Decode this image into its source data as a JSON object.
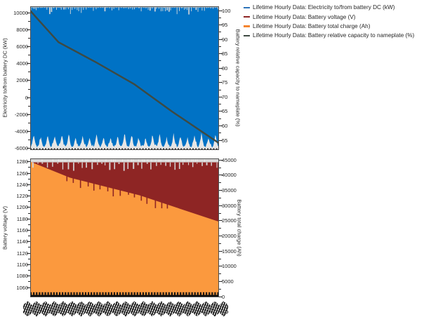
{
  "window": {
    "background": "#FFFFFF"
  },
  "legend": {
    "items": [
      {
        "label": "Lifetime Hourly Data: Electricity to/from battery DC (kW)",
        "color": "#2E74B9"
      },
      {
        "label": "Lifetime Hourly Data: Battery voltage (V)",
        "color": "#8E2524"
      },
      {
        "label": "Lifetime Hourly Data: Battery total charge (Ah)",
        "color": "#F5852F"
      },
      {
        "label": "Lifetime Hourly Data: Battery relative capacity to nameplate (%)",
        "color": "#3E4A42"
      }
    ]
  },
  "chart_data": [
    {
      "type": "area",
      "title": "",
      "position": "top",
      "legend_position": "outside-right",
      "grid": false,
      "series": [
        {
          "name": "Lifetime Hourly Data: Electricity to/from battery DC (kW)",
          "axis": "left",
          "color": "#0072C5",
          "representation": "dense hourly line collapsing to a solid band over lifetime",
          "band_top_kW": 10400,
          "band_bottom_kW": -6200,
          "bottom_envelope": {
            "valley_kW": -6200,
            "dip_peak_kW": -4300,
            "cycles": 27
          },
          "top_gap_color": "#D9D9D9"
        },
        {
          "name": "Lifetime Hourly Data: Battery relative capacity to nameplate (%)",
          "axis": "right",
          "color": "#3E4A42",
          "x_percent_lifetime": [
            0,
            4,
            15,
            35,
            55,
            75,
            100
          ],
          "values_percent": [
            100,
            97,
            89,
            82,
            74.5,
            65,
            54
          ]
        }
      ],
      "left_axis": {
        "label": "Electricity to/from battery DC (kW)",
        "ticks": [
          10000,
          8000,
          6000,
          4000,
          2000,
          0,
          -2000,
          -4000,
          -6000
        ],
        "range": [
          -6600,
          10900
        ]
      },
      "right_axis": {
        "label": "Battery relative capacity to nameplate (%)",
        "ticks": [
          100,
          95,
          90,
          85,
          80,
          75,
          70,
          65,
          60,
          55
        ],
        "range": [
          51.5,
          101.5
        ]
      },
      "x_axis": {
        "label": "",
        "tick_labels": "hourly lifetime timestamps (overlapping, illegible)"
      }
    },
    {
      "type": "area",
      "title": "",
      "position": "bottom",
      "grid": false,
      "series": [
        {
          "name": "Lifetime Hourly Data: Battery voltage (V)",
          "axis": "left",
          "color": "#8E2524",
          "representation": "dense hourly band; visible wedge between charge curve and ~1268 V",
          "band_top_V": 1268,
          "top_gap_color": "#D9D9D9"
        },
        {
          "name": "Lifetime Hourly Data: Battery total charge (Ah)",
          "axis": "right",
          "color": "#FB993E",
          "representation": "filled area from 0 Ah up to declining envelope",
          "x_percent_lifetime": [
            0,
            21,
            58,
            100
          ],
          "top_edge_values_Ah": [
            44500,
            39200,
            33400,
            24700
          ],
          "band_bottom_Ah": 0
        }
      ],
      "left_axis": {
        "label": "Battery voltage (V)",
        "ticks": [
          1280,
          1260,
          1240,
          1220,
          1200,
          1180,
          1160,
          1140,
          1120,
          1100,
          1080,
          1060
        ],
        "range": [
          1048,
          1285
        ]
      },
      "right_axis": {
        "label": "Battery total charge (Ah)",
        "ticks": [
          45000,
          40000,
          35000,
          30000,
          25000,
          20000,
          15000,
          10000,
          5000,
          0
        ],
        "range": [
          0,
          45600
        ]
      },
      "x_axis": {
        "label": "",
        "tick_labels": "hourly lifetime timestamps (overlapping, illegible)"
      }
    }
  ]
}
